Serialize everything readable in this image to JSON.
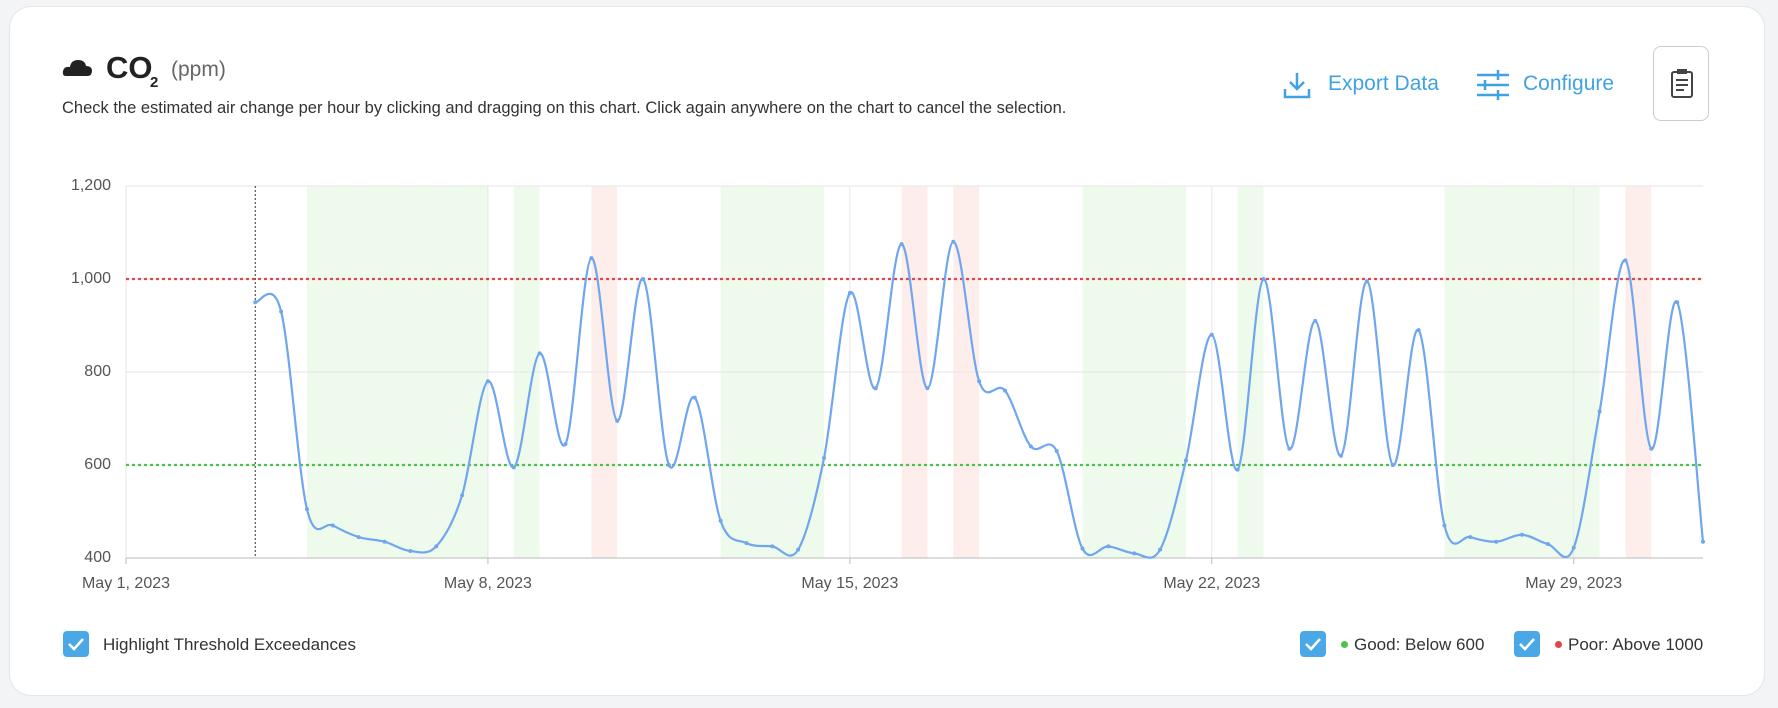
{
  "header": {
    "title": "CO",
    "title_sub": "2",
    "unit": "(ppm)",
    "description": "Check the estimated air change per hour by clicking and dragging on this chart. Click again anywhere on the chart to cancel the selection."
  },
  "actions": {
    "export": "Export Data",
    "configure": "Configure"
  },
  "controls": {
    "highlight": {
      "label": "Highlight Threshold Exceedances",
      "checked": true
    }
  },
  "chart_data": {
    "type": "line",
    "x": [
      2.5,
      3,
      3.5,
      4,
      4.5,
      5,
      5.5,
      6,
      6.5,
      7,
      7.5,
      8,
      8.5,
      9,
      9.5,
      10,
      10.5,
      11,
      11.5,
      12,
      12.5,
      13,
      13.5,
      14,
      14.5,
      15,
      15.5,
      16,
      16.5,
      17,
      17.5,
      18,
      18.5,
      19,
      19.5,
      20,
      20.5,
      21,
      21.5,
      22,
      22.5,
      23,
      23.5,
      24,
      24.5,
      25,
      25.5,
      26,
      26.5,
      27,
      27.5,
      28,
      28.5,
      29,
      29.5,
      30,
      30.5
    ],
    "series": [
      {
        "color": "#6fa6ee",
        "values": [
          950,
          930,
          505,
          470,
          445,
          435,
          415,
          425,
          535,
          780,
          595,
          840,
          645,
          1045,
          695,
          1000,
          600,
          745,
          480,
          432,
          425,
          418,
          615,
          970,
          765,
          1075,
          765,
          1080,
          780,
          760,
          640,
          630,
          420,
          425,
          410,
          418,
          610,
          880,
          590,
          1000,
          635,
          910,
          620,
          995,
          600,
          890,
          470,
          445,
          435,
          450,
          430,
          422,
          715,
          1040,
          635,
          950,
          435
        ]
      }
    ],
    "xlim": [
      0,
      30.5
    ],
    "xticks": [
      {
        "value": 0,
        "label": "May 1, 2023"
      },
      {
        "value": 7,
        "label": "May 8, 2023"
      },
      {
        "value": 14,
        "label": "May 15, 2023"
      },
      {
        "value": 21,
        "label": "May 22, 2023"
      },
      {
        "value": 28,
        "label": "May 29, 2023"
      }
    ],
    "ylim": [
      400,
      1200
    ],
    "yticks": [
      400,
      600,
      800,
      {
        "value": 1000,
        "label": "1,000"
      },
      {
        "value": 1200,
        "label": "1,200"
      }
    ],
    "grid": true,
    "thresholds": [
      {
        "name": "Good: Below 600",
        "value": 600,
        "color": "#4cc24c",
        "band": "#eefaec",
        "direction": "below",
        "checked": true
      },
      {
        "name": "Poor: Above 1000",
        "value": 1000,
        "color": "#e04848",
        "band": "#fdeeec",
        "direction": "above",
        "checked": true
      }
    ]
  }
}
